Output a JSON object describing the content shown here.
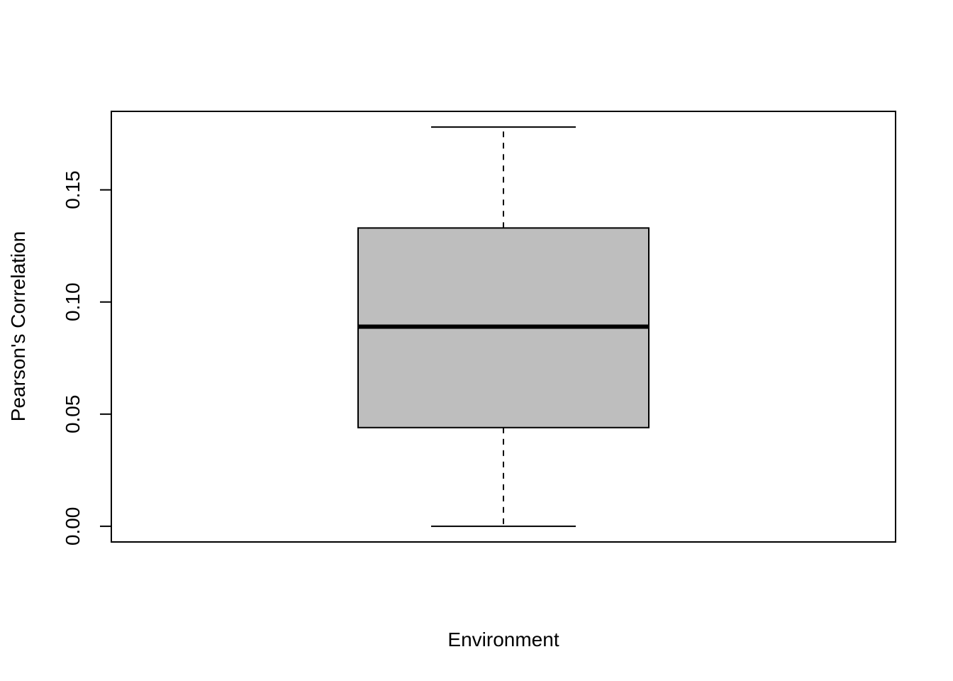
{
  "chart_data": {
    "type": "boxplot",
    "title": "",
    "xlabel": "Environment",
    "ylabel": "Pearson's Correlation",
    "y_ticks": [
      0.0,
      0.05,
      0.1,
      0.15
    ],
    "y_tick_labels": [
      "0.00",
      "0.05",
      "0.10",
      "0.15"
    ],
    "ylim": [
      -0.007,
      0.185
    ],
    "grid": false,
    "legend": "none",
    "box": {
      "min": 0.0,
      "q1": 0.044,
      "median": 0.089,
      "q3": 0.133,
      "max": 0.178
    },
    "colors": {
      "box_fill": "#bebebe",
      "stroke": "#000000"
    }
  }
}
